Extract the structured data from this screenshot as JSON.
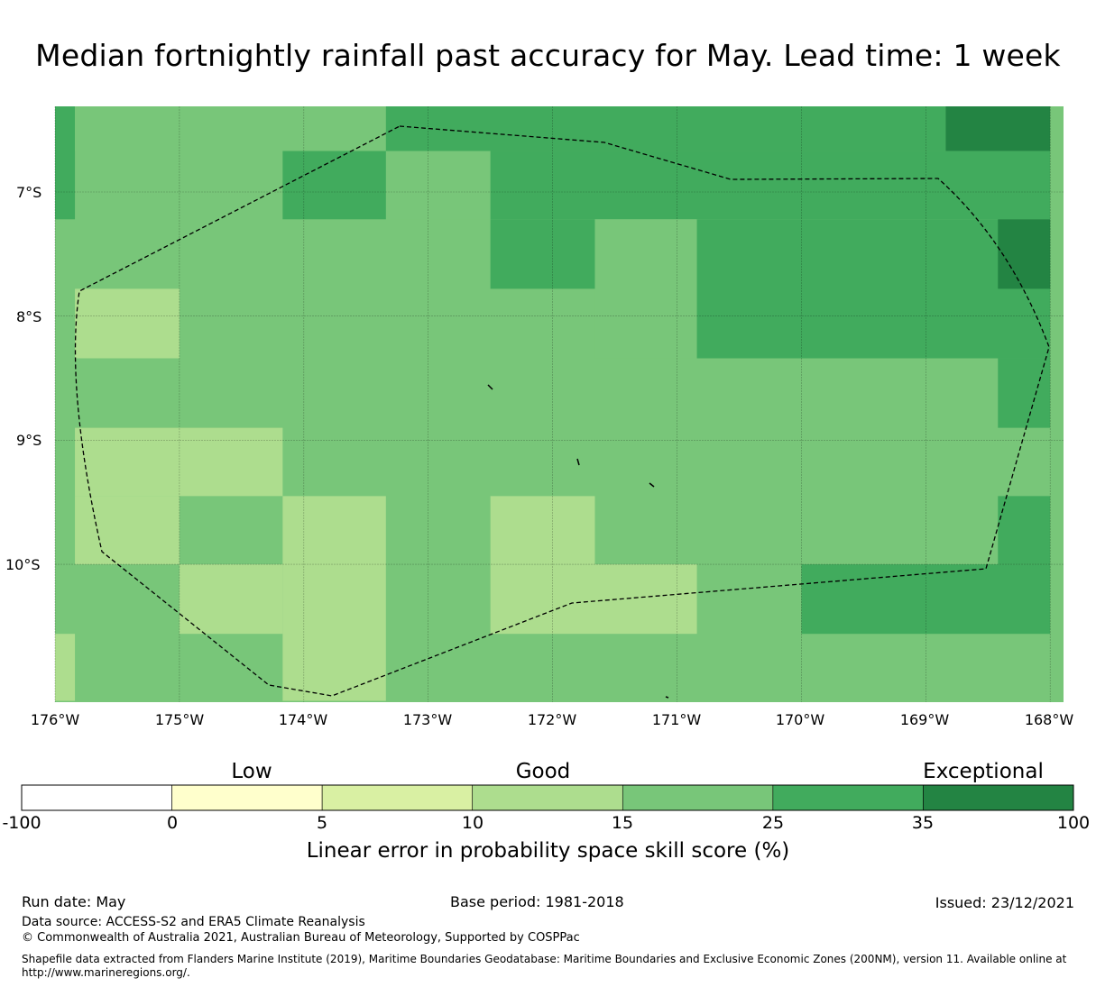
{
  "title": "Median fortnightly rainfall past accuracy for May. Lead time: 1 week",
  "map": {
    "lon_ticks": [
      "176°W",
      "175°W",
      "174°W",
      "173°W",
      "172°W",
      "171°W",
      "170°W",
      "169°W",
      "168°W"
    ],
    "lat_ticks": [
      "7°S",
      "8°S",
      "9°S",
      "10°S"
    ],
    "extent": {
      "lon": [
        -176,
        -168
      ],
      "lat": [
        -11.1,
        -6.3
      ]
    },
    "grid": true,
    "colors": {
      "c15_25": "#78c679",
      "c10_15": "#addd8e",
      "c25_35": "#41ab5d",
      "c35_100": "#238443"
    },
    "cells": [
      {
        "lon": [
          -176.0,
          -175.84
        ],
        "lat": [
          -6.3,
          -7.22
        ],
        "score_class": "25-35"
      },
      {
        "lon": [
          -175.84,
          -173.34
        ],
        "lat": [
          -6.3,
          -6.67
        ],
        "score_class": "15-25"
      },
      {
        "lon": [
          -173.34,
          -168.84
        ],
        "lat": [
          -6.3,
          -6.67
        ],
        "score_class": "25-35"
      },
      {
        "lon": [
          -168.84,
          -168.0
        ],
        "lat": [
          -6.3,
          -6.67
        ],
        "score_class": "35-100"
      },
      {
        "lon": [
          -173.34,
          -172.5
        ],
        "lat": [
          -6.67,
          -7.22
        ],
        "score_class": "15-25"
      },
      {
        "lon": [
          -174.17,
          -173.34
        ],
        "lat": [
          -6.67,
          -7.22
        ],
        "score_class": "25-35"
      },
      {
        "lon": [
          -172.5,
          -168.0
        ],
        "lat": [
          -6.67,
          -7.22
        ],
        "score_class": "25-35"
      },
      {
        "lon": [
          -172.5,
          -171.66
        ],
        "lat": [
          -7.22,
          -7.78
        ],
        "score_class": "25-35"
      },
      {
        "lon": [
          -171.66,
          -170.84
        ],
        "lat": [
          -7.22,
          -8.34
        ],
        "score_class": "15-25"
      },
      {
        "lon": [
          -170.84,
          -168.0
        ],
        "lat": [
          -7.22,
          -8.34
        ],
        "score_class": "25-35"
      },
      {
        "lon": [
          -168.42,
          -168.0
        ],
        "lat": [
          -7.22,
          -7.78
        ],
        "score_class": "35-100"
      },
      {
        "lon": [
          -175.84,
          -175.0
        ],
        "lat": [
          -7.78,
          -8.34
        ],
        "score_class": "10-15"
      },
      {
        "lon": [
          -168.42,
          -168.0
        ],
        "lat": [
          -8.34,
          -8.9
        ],
        "score_class": "25-35"
      },
      {
        "lon": [
          -175.84,
          -174.17
        ],
        "lat": [
          -8.9,
          -9.45
        ],
        "score_class": "10-15"
      },
      {
        "lon": [
          -175.84,
          -175.0
        ],
        "lat": [
          -9.45,
          -10.0
        ],
        "score_class": "10-15"
      },
      {
        "lon": [
          -174.17,
          -173.34
        ],
        "lat": [
          -9.45,
          -11.1
        ],
        "score_class": "10-15"
      },
      {
        "lon": [
          -172.5,
          -171.66
        ],
        "lat": [
          -9.45,
          -10.0
        ],
        "score_class": "10-15"
      },
      {
        "lon": [
          -168.42,
          -168.0
        ],
        "lat": [
          -9.45,
          -10.0
        ],
        "score_class": "25-35"
      },
      {
        "lon": [
          -175.0,
          -174.17
        ],
        "lat": [
          -10.0,
          -10.56
        ],
        "score_class": "10-15"
      },
      {
        "lon": [
          -172.5,
          -170.84
        ],
        "lat": [
          -10.0,
          -10.56
        ],
        "score_class": "10-15"
      },
      {
        "lon": [
          -170.0,
          -168.0
        ],
        "lat": [
          -10.0,
          -10.56
        ],
        "score_class": "25-35"
      },
      {
        "lon": [
          -176.0,
          -175.84
        ],
        "lat": [
          -10.56,
          -11.1
        ],
        "score_class": "10-15"
      }
    ]
  },
  "colorbar": {
    "headers": {
      "low": "Low",
      "good": "Good",
      "exceptional": "Exceptional"
    },
    "ticks": [
      "-100",
      "0",
      "5",
      "10",
      "15",
      "25",
      "35",
      "100"
    ],
    "colors": [
      "#ffffff",
      "#ffffcc",
      "#d9f0a3",
      "#addd8e",
      "#78c679",
      "#41ab5d",
      "#238443"
    ],
    "label": "Linear error in probability space skill score (%)"
  },
  "footer": {
    "run_date": "Run date: May",
    "base_period": "Base period: 1981-2018",
    "issued": "Issued: 23/12/2021",
    "data_source": "Data source: ACCESS-S2 and ERA5 Climate Reanalysis",
    "copyright": "© Commonwealth of Australia 2021, Australian Bureau of Meteorology, Supported by COSPPac",
    "shapefile": "Shapefile data extracted from Flanders Marine Institute (2019), Maritime Boundaries Geodatabase: Maritime Boundaries and Exclusive Economic Zones (200NM), version 11. Available online at http://www.marineregions.org/."
  }
}
